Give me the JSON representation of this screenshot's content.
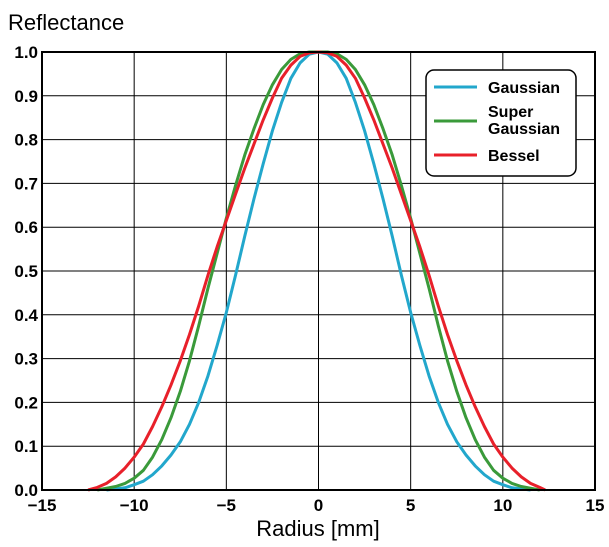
{
  "chart_data": {
    "type": "line",
    "ylabel": "Reflectance",
    "xlabel": "Radius [mm]",
    "xlim": [
      -15,
      15
    ],
    "ylim": [
      0,
      1.0
    ],
    "x_ticks": [
      -15,
      -10,
      -5,
      0,
      5,
      10,
      15
    ],
    "y_ticks": [
      0.0,
      0.1,
      0.2,
      0.3,
      0.4,
      0.5,
      0.6,
      0.7,
      0.8,
      0.9,
      1.0
    ],
    "x_tick_labels": [
      "−15",
      "−10",
      "−5",
      "0",
      "5",
      "10",
      "15"
    ],
    "y_tick_labels": [
      "0.0",
      "0.1",
      "0.2",
      "0.3",
      "0.4",
      "0.5",
      "0.6",
      "0.7",
      "0.8",
      "0.9",
      "1.0"
    ],
    "grid": true,
    "legend_position": "top-right",
    "legend": [
      "Gaussian",
      "Super\nGaussian",
      "Bessel"
    ],
    "series": [
      {
        "name": "Gaussian",
        "color": "#22a7cc",
        "x": [
          -11.5,
          -10.5,
          -10,
          -9.5,
          -9,
          -8.5,
          -8,
          -7.5,
          -7,
          -6.5,
          -6,
          -5.5,
          -5,
          -4.5,
          -4,
          -3.5,
          -3,
          -2.5,
          -2,
          -1.5,
          -1,
          -0.5,
          0,
          0.5,
          1,
          1.5,
          2,
          2.5,
          3,
          3.5,
          4,
          4.5,
          5,
          5.5,
          6,
          6.5,
          7,
          7.5,
          8,
          8.5,
          9,
          9.5,
          10,
          10.5,
          11.5
        ],
        "y": [
          0.0,
          0.005,
          0.012,
          0.02,
          0.035,
          0.055,
          0.08,
          0.11,
          0.15,
          0.2,
          0.26,
          0.33,
          0.405,
          0.49,
          0.58,
          0.665,
          0.745,
          0.82,
          0.885,
          0.94,
          0.975,
          0.995,
          1.0,
          0.995,
          0.975,
          0.94,
          0.885,
          0.82,
          0.745,
          0.665,
          0.58,
          0.49,
          0.405,
          0.33,
          0.26,
          0.2,
          0.15,
          0.11,
          0.08,
          0.055,
          0.035,
          0.02,
          0.012,
          0.005,
          0.0
        ]
      },
      {
        "name": "Super Gaussian",
        "color": "#3a9a3a",
        "x": [
          -12,
          -11,
          -10.5,
          -10,
          -9.5,
          -9,
          -8.5,
          -8,
          -7.5,
          -7,
          -6.5,
          -6,
          -5.5,
          -5,
          -4.5,
          -4,
          -3.5,
          -3,
          -2.5,
          -2,
          -1.5,
          -1,
          -0.5,
          0,
          0.5,
          1,
          1.5,
          2,
          2.5,
          3,
          3.5,
          4,
          4.5,
          5,
          5.5,
          6,
          6.5,
          7,
          7.5,
          8,
          8.5,
          9,
          9.5,
          10,
          10.5,
          11,
          12
        ],
        "y": [
          0.0,
          0.008,
          0.015,
          0.027,
          0.045,
          0.075,
          0.115,
          0.165,
          0.225,
          0.295,
          0.375,
          0.46,
          0.54,
          0.62,
          0.695,
          0.765,
          0.825,
          0.88,
          0.925,
          0.96,
          0.983,
          0.996,
          1.0,
          1.0,
          1.0,
          0.996,
          0.983,
          0.96,
          0.925,
          0.88,
          0.825,
          0.765,
          0.695,
          0.62,
          0.54,
          0.46,
          0.375,
          0.295,
          0.225,
          0.165,
          0.115,
          0.075,
          0.045,
          0.027,
          0.015,
          0.008,
          0.0
        ]
      },
      {
        "name": "Bessel",
        "color": "#e8202a",
        "x": [
          -12.5,
          -12,
          -11.5,
          -11,
          -10.5,
          -10,
          -9.5,
          -9,
          -8.5,
          -8,
          -7.5,
          -7,
          -6.5,
          -6,
          -5.5,
          -5,
          -4.5,
          -4,
          -3.5,
          -3,
          -2.5,
          -2,
          -1.5,
          -1,
          -0.5,
          0,
          0.5,
          1,
          1.5,
          2,
          2.5,
          3,
          3.5,
          4,
          4.5,
          5,
          5.5,
          6,
          6.5,
          7,
          7.5,
          8,
          8.5,
          9,
          9.5,
          10,
          10.5,
          11,
          11.5,
          12,
          12.3
        ],
        "y": [
          0.0,
          0.006,
          0.015,
          0.03,
          0.05,
          0.075,
          0.105,
          0.145,
          0.19,
          0.24,
          0.295,
          0.355,
          0.42,
          0.49,
          0.555,
          0.615,
          0.675,
          0.735,
          0.79,
          0.845,
          0.895,
          0.94,
          0.97,
          0.99,
          0.998,
          1.0,
          0.998,
          0.99,
          0.97,
          0.94,
          0.895,
          0.845,
          0.79,
          0.735,
          0.675,
          0.615,
          0.555,
          0.49,
          0.42,
          0.355,
          0.295,
          0.24,
          0.19,
          0.145,
          0.105,
          0.075,
          0.05,
          0.03,
          0.015,
          0.006,
          0.0
        ]
      }
    ]
  }
}
